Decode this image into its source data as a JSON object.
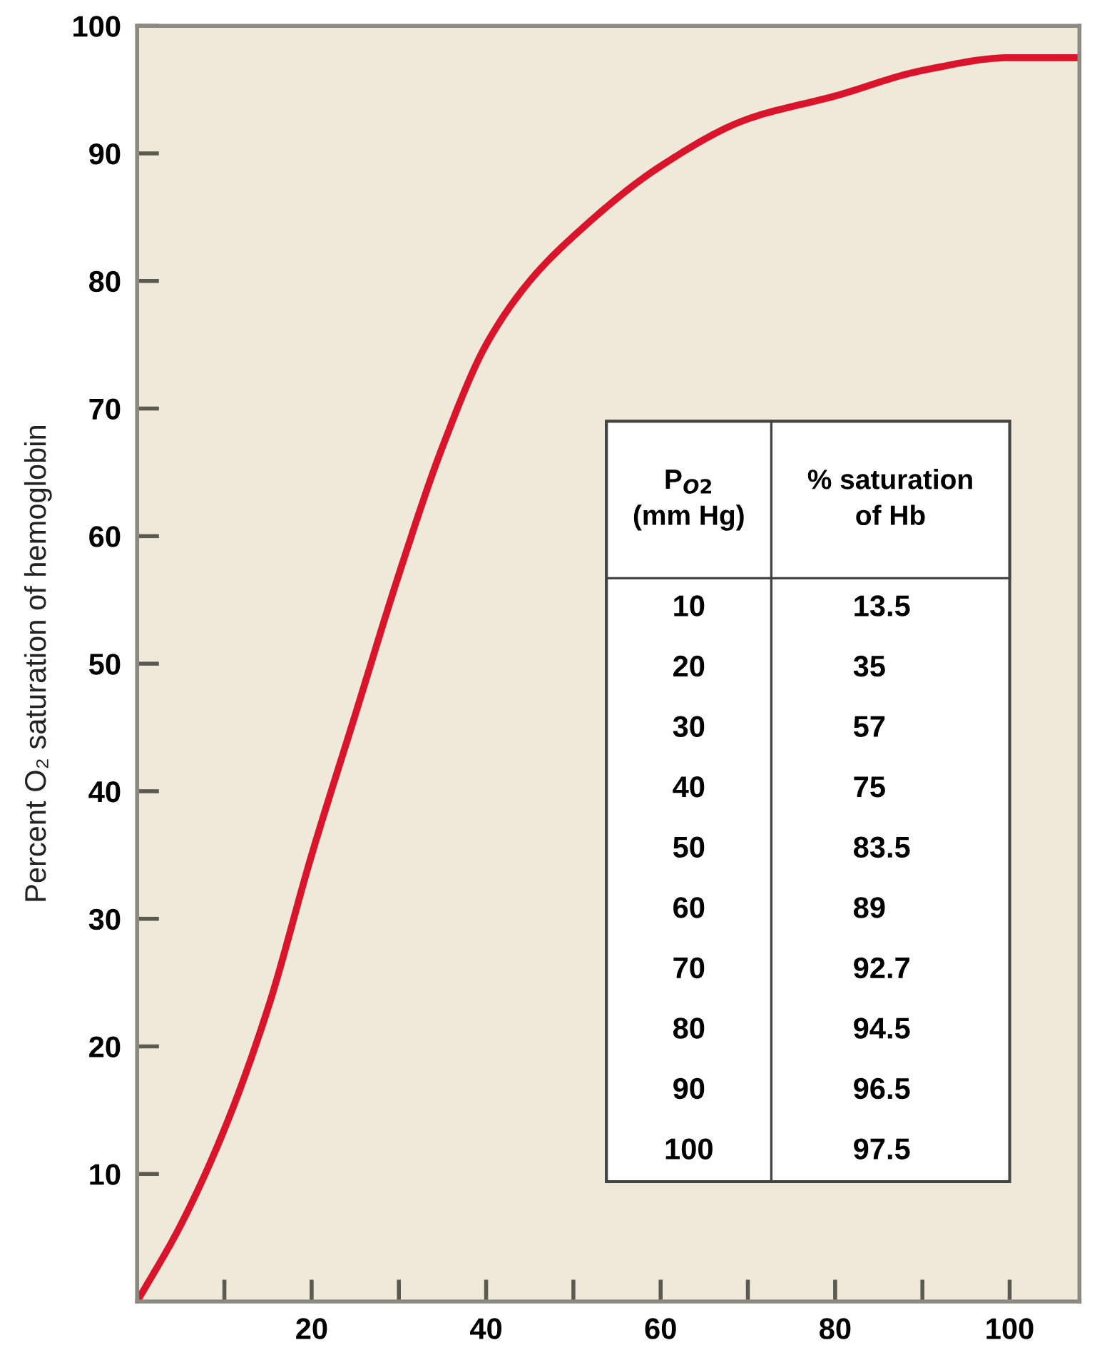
{
  "chart_data": {
    "type": "line",
    "ylabel": "Percent O₂ saturation of hemoglobin",
    "x": [
      0,
      5,
      10,
      15,
      20,
      25,
      30,
      35,
      40,
      45,
      50,
      60,
      70,
      80,
      90,
      100,
      108
    ],
    "series": [
      {
        "color": "#d9142b",
        "values": [
          0,
          6,
          13.5,
          23,
          35,
          46,
          57,
          67,
          75,
          80,
          83.5,
          89,
          92.7,
          94.5,
          96.5,
          97.5,
          97.5
        ]
      }
    ],
    "annotations": [
      "P$_{O2}$\n(mm Hg)",
      "% saturation\nof Hb",
      "10",
      "13.5",
      "20",
      "35",
      "30",
      "57",
      "40",
      "75",
      "50",
      "83.5",
      "60",
      "89",
      "70",
      "92.7",
      "80",
      "94.5",
      "90",
      "96.5",
      "100",
      "97.5"
    ],
    "xlim": [
      0,
      108
    ],
    "ylim": [
      0,
      100
    ],
    "xticks": [
      {
        "value": 10,
        "label": null
      },
      20,
      {
        "value": 30,
        "label": null
      },
      40,
      {
        "value": 50,
        "label": null
      },
      60,
      {
        "value": 70,
        "label": null
      },
      80,
      {
        "value": 90,
        "label": null
      },
      100
    ],
    "yticks": [
      10,
      20,
      30,
      40,
      50,
      60,
      70,
      80,
      90,
      100
    ],
    "grid": false,
    "legend": false,
    "marker": "none",
    "line_style": "solid"
  }
}
